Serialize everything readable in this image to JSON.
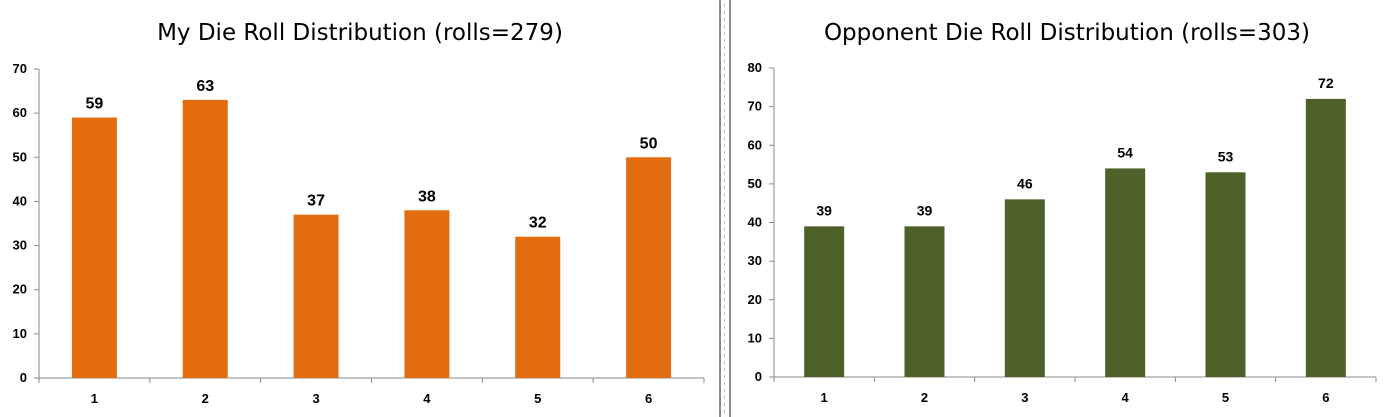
{
  "chart_data": [
    {
      "type": "bar",
      "title": "My Die Roll Distribution (rolls=279)",
      "categories": [
        "1",
        "2",
        "3",
        "4",
        "5",
        "6"
      ],
      "values": [
        59,
        63,
        37,
        38,
        32,
        50
      ],
      "ylim": [
        0,
        70
      ],
      "yticks": [
        "0",
        "10",
        "20",
        "30",
        "40",
        "50",
        "60",
        "70"
      ],
      "xlabel": "",
      "ylabel": "",
      "grid": false,
      "color": "#e36c0f"
    },
    {
      "type": "bar",
      "title": "Opponent Die Roll Distribution (rolls=303)",
      "categories": [
        "1",
        "2",
        "3",
        "4",
        "5",
        "6"
      ],
      "values": [
        39,
        39,
        46,
        54,
        53,
        72
      ],
      "ylim": [
        0,
        80
      ],
      "yticks": [
        "0",
        "10",
        "20",
        "30",
        "40",
        "50",
        "60",
        "70",
        "80"
      ],
      "xlabel": "",
      "ylabel": "",
      "grid": false,
      "color": "#4e6128"
    }
  ]
}
